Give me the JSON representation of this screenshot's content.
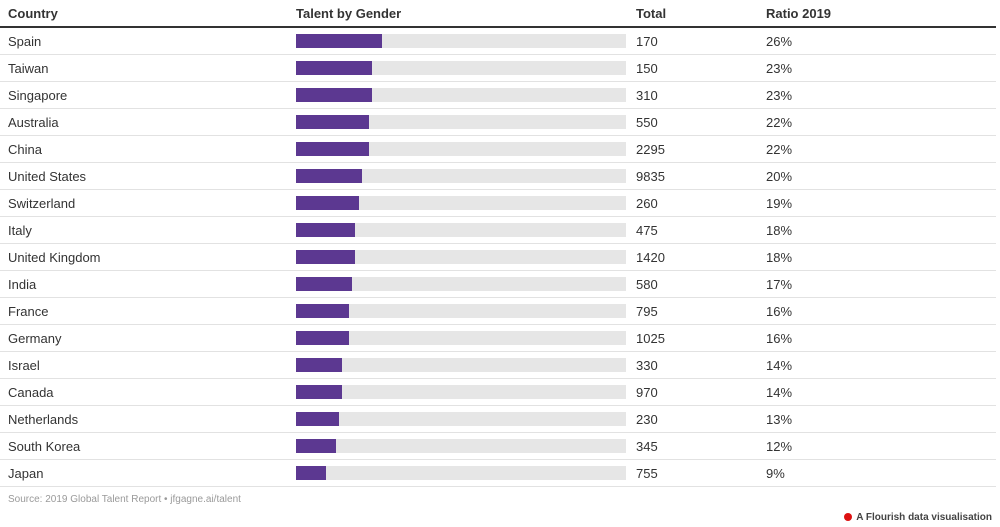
{
  "headers": {
    "country": "Country",
    "bar": "Talent by Gender",
    "total": "Total",
    "ratio": "Ratio 2019"
  },
  "chart_data": {
    "type": "table",
    "columns": [
      "Country",
      "Talent by Gender",
      "Total",
      "Ratio 2019"
    ],
    "bar_max": 100,
    "bar_color": "#5c3891",
    "track_color": "#e6e6e6",
    "rows": [
      {
        "country": "Spain",
        "total": "170",
        "ratio": "26%",
        "ratio_value": 26
      },
      {
        "country": "Taiwan",
        "total": "150",
        "ratio": "23%",
        "ratio_value": 23
      },
      {
        "country": "Singapore",
        "total": "310",
        "ratio": "23%",
        "ratio_value": 23
      },
      {
        "country": "Australia",
        "total": "550",
        "ratio": "22%",
        "ratio_value": 22
      },
      {
        "country": "China",
        "total": "2295",
        "ratio": "22%",
        "ratio_value": 22
      },
      {
        "country": "United States",
        "total": "9835",
        "ratio": "20%",
        "ratio_value": 20
      },
      {
        "country": "Switzerland",
        "total": "260",
        "ratio": "19%",
        "ratio_value": 19
      },
      {
        "country": "Italy",
        "total": "475",
        "ratio": "18%",
        "ratio_value": 18
      },
      {
        "country": "United Kingdom",
        "total": "1420",
        "ratio": "18%",
        "ratio_value": 18
      },
      {
        "country": "India",
        "total": "580",
        "ratio": "17%",
        "ratio_value": 17
      },
      {
        "country": "France",
        "total": "795",
        "ratio": "16%",
        "ratio_value": 16
      },
      {
        "country": "Germany",
        "total": "1025",
        "ratio": "16%",
        "ratio_value": 16
      },
      {
        "country": "Israel",
        "total": "330",
        "ratio": "14%",
        "ratio_value": 14
      },
      {
        "country": "Canada",
        "total": "970",
        "ratio": "14%",
        "ratio_value": 14
      },
      {
        "country": "Netherlands",
        "total": "230",
        "ratio": "13%",
        "ratio_value": 13
      },
      {
        "country": "South Korea",
        "total": "345",
        "ratio": "12%",
        "ratio_value": 12
      },
      {
        "country": "Japan",
        "total": "755",
        "ratio": "9%",
        "ratio_value": 9
      }
    ]
  },
  "footer": {
    "source": "Source: 2019 Global Talent Report • jfgagne.ai/talent",
    "brand": "A Flourish data visualisation"
  }
}
